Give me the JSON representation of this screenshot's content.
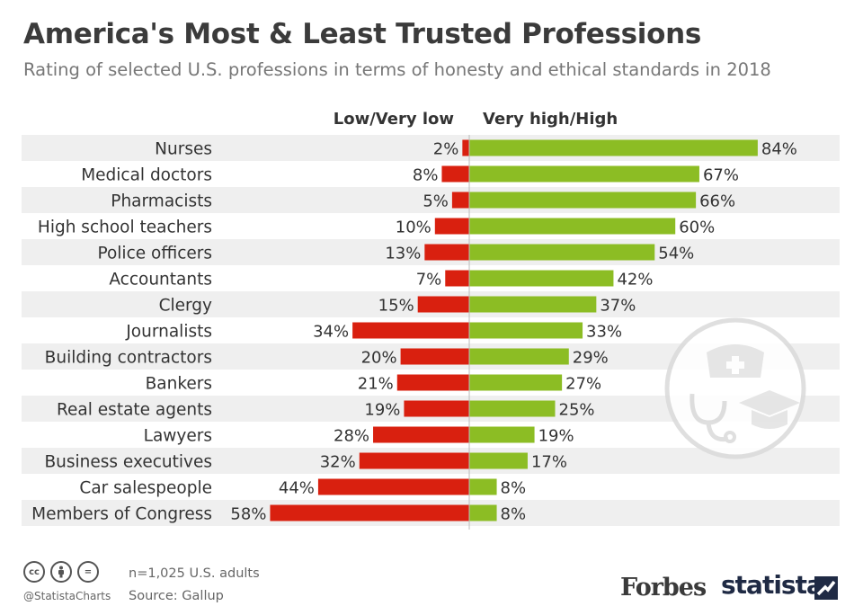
{
  "title": "America's Most & Least Trusted Professions",
  "subtitle": "Rating of selected U.S. professions in terms of honesty and ethical standards in 2018",
  "chart_data": {
    "type": "bar",
    "orientation": "horizontal-diverging",
    "categories": [
      "Nurses",
      "Medical doctors",
      "Pharmacists",
      "High school teachers",
      "Police officers",
      "Accountants",
      "Clergy",
      "Journalists",
      "Building contractors",
      "Bankers",
      "Real estate agents",
      "Lawyers",
      "Business executives",
      "Car salespeople",
      "Members of Congress"
    ],
    "series": [
      {
        "name": "Low/Very low",
        "color": "#d9200f",
        "values": [
          2,
          8,
          5,
          10,
          13,
          7,
          15,
          34,
          20,
          21,
          19,
          28,
          32,
          44,
          58
        ]
      },
      {
        "name": "Very high/High",
        "color": "#8cbd24",
        "values": [
          84,
          67,
          66,
          60,
          54,
          42,
          37,
          33,
          29,
          27,
          25,
          19,
          17,
          8,
          8
        ]
      }
    ],
    "value_suffix": "%",
    "row_background": "#efefef",
    "legend_placement": "top-center"
  },
  "footer": {
    "cc_icons": [
      "cc",
      "by",
      "="
    ],
    "handle": "@StatistaCharts",
    "note": "n=1,025 U.S. adults",
    "source": "Source: Gallup",
    "forbes": "Forbes",
    "statista": "statista"
  }
}
